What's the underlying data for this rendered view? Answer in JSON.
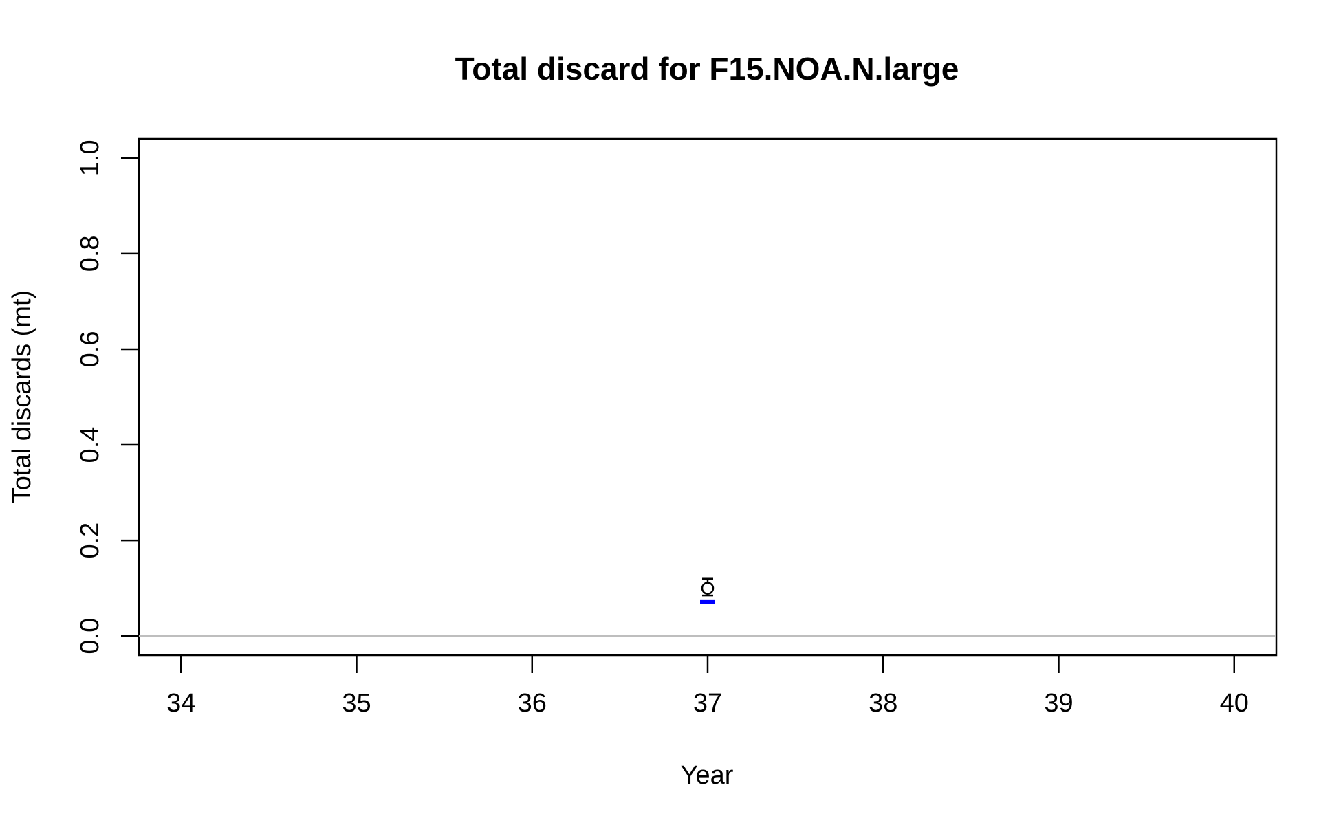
{
  "chart_data": {
    "type": "scatter",
    "title": "Total discard for F15.NOA.N.large",
    "xlabel": "Year",
    "ylabel": "Total discards (mt)",
    "xlim": [
      33.76,
      40.24
    ],
    "ylim": [
      -0.04,
      1.04
    ],
    "x_ticks": [
      34,
      35,
      36,
      37,
      38,
      39,
      40
    ],
    "y_ticks": [
      0.0,
      0.2,
      0.4,
      0.6,
      0.8,
      1.0
    ],
    "x_tick_labels": [
      "34",
      "35",
      "36",
      "37",
      "38",
      "39",
      "40"
    ],
    "y_tick_labels": [
      "0.0",
      "0.2",
      "0.4",
      "0.6",
      "0.8",
      "1.0"
    ],
    "reference_line": {
      "y": 0,
      "color": "#bebebe"
    },
    "series": [
      {
        "marker": "open-circle",
        "color": "#000000",
        "points": [
          {
            "x": 37,
            "y": 0.1,
            "y_low": 0.085,
            "y_high": 0.12
          }
        ]
      },
      {
        "marker": "horizontal-dash",
        "color": "#0000ff",
        "points": [
          {
            "x": 37,
            "y": 0.071
          }
        ]
      }
    ],
    "grid": false,
    "legend": "none"
  }
}
